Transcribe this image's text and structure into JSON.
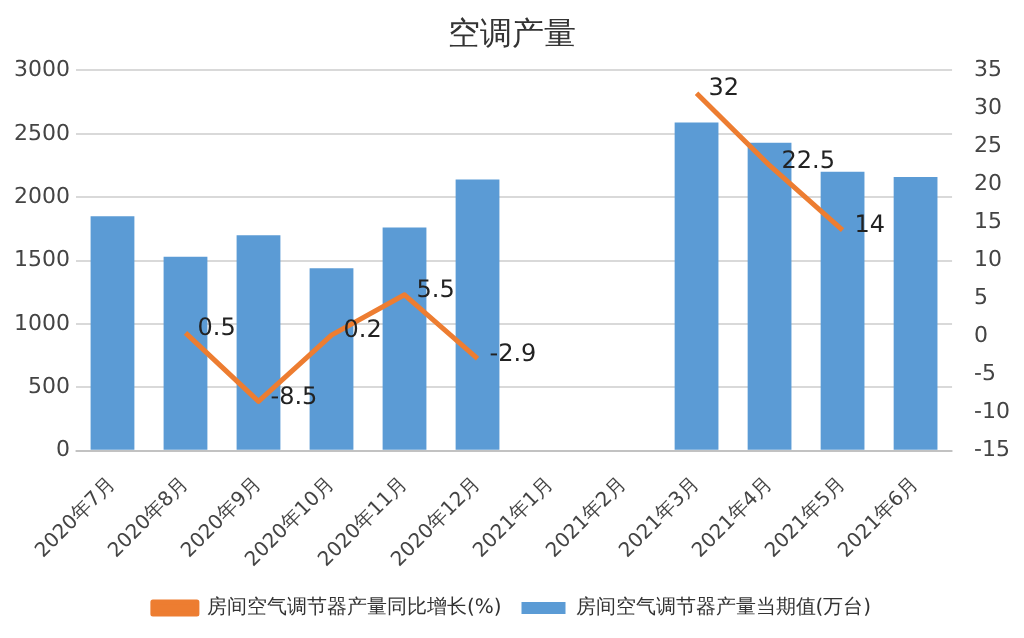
{
  "chart_data": {
    "type": "bar",
    "title": "空调产量",
    "categories": [
      "2020年7月",
      "2020年8月",
      "2020年9月",
      "2020年10月",
      "2020年11月",
      "2020年12月",
      "2021年1月",
      "2021年2月",
      "2021年3月",
      "2021年4月",
      "2021年5月",
      "2021年6月"
    ],
    "series": [
      {
        "name": "房间空气调节器产量当期值(万台)",
        "color": "#5b9bd5",
        "values": [
          1850,
          1530,
          1700,
          1440,
          1760,
          2140,
          null,
          null,
          2590,
          2430,
          2200,
          2160
        ]
      },
      {
        "name": "房间空气调节器产量同比增长(%)",
        "type": "line",
        "axis": "y2",
        "color": "#ed7d31",
        "values": [
          null,
          0.5,
          -8.5,
          0.2,
          5.5,
          -2.9,
          null,
          null,
          32,
          22.5,
          14,
          null
        ],
        "value_labels": [
          null,
          "0.5",
          "-8.5",
          "0.2",
          "5.5",
          "-2.9",
          null,
          null,
          "32",
          "22.5",
          "14",
          null
        ]
      }
    ],
    "ylim": [
      0,
      3000
    ],
    "yticks": [
      0,
      500,
      1000,
      1500,
      2000,
      2500,
      3000
    ],
    "y2lim": [
      -15,
      35
    ],
    "y2ticks": [
      -15,
      -10,
      -5,
      0,
      5,
      10,
      15,
      20,
      25,
      30,
      35
    ],
    "grid": "y",
    "legend": "bottom",
    "marker": "none"
  }
}
